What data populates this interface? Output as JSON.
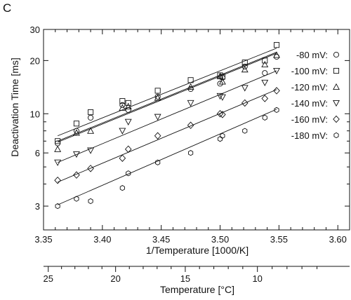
{
  "panel_label": "C",
  "chart_data": {
    "type": "scatter",
    "xlabel": "1/Temperature  [1000/K]",
    "ylabel": "Deactivation Time [ms]",
    "y_scale": "log",
    "xlim": [
      3.35,
      3.61
    ],
    "ylim": [
      2.2,
      30
    ],
    "x_ticks": [
      "3.35",
      "3.40",
      "3.45",
      "3.50",
      "3.55",
      "3.60"
    ],
    "y_ticks": [
      "3",
      "6",
      "10",
      "20",
      "30"
    ],
    "secondary_x_axis": {
      "label": "Temperature [°C]",
      "ticks": [
        "25",
        "20",
        "15",
        "10"
      ]
    },
    "legend_position": "right",
    "series": [
      {
        "name": "-80 mV:",
        "marker": "circle",
        "x": [
          3.362,
          3.378,
          3.39,
          3.417,
          3.422,
          3.447,
          3.475,
          3.5,
          3.502,
          3.521,
          3.538,
          3.548
        ],
        "y": [
          6.8,
          8.0,
          9.5,
          11.2,
          10.5,
          12.5,
          13.8,
          14.8,
          16.0,
          18.5,
          17.0,
          21.0
        ],
        "fit": [
          [
            3.362,
            7.0
          ],
          [
            3.548,
            22.3
          ]
        ]
      },
      {
        "name": "-100 mV:",
        "marker": "square",
        "x": [
          3.362,
          3.378,
          3.39,
          3.417,
          3.422,
          3.447,
          3.475,
          3.5,
          3.502,
          3.521,
          3.538,
          3.548
        ],
        "y": [
          7.0,
          8.8,
          10.2,
          11.8,
          11.5,
          13.5,
          15.5,
          16.5,
          16.2,
          19.5,
          20.0,
          24.5
        ],
        "fit": [
          [
            3.362,
            7.5
          ],
          [
            3.548,
            23.5
          ]
        ]
      },
      {
        "name": "-120 mV:",
        "marker": "triangle-up",
        "x": [
          3.362,
          3.378,
          3.39,
          3.417,
          3.422,
          3.447,
          3.475,
          3.5,
          3.502,
          3.521,
          3.538,
          3.548
        ],
        "y": [
          6.3,
          7.8,
          8.0,
          10.8,
          11.0,
          12.3,
          14.2,
          16.3,
          15.2,
          17.8,
          19.0,
          21.5
        ],
        "fit": [
          [
            3.362,
            6.9
          ],
          [
            3.548,
            22.0
          ]
        ]
      },
      {
        "name": "-140 mV:",
        "marker": "triangle-down",
        "x": [
          3.362,
          3.378,
          3.39,
          3.417,
          3.422,
          3.447,
          3.475,
          3.5,
          3.502,
          3.521,
          3.538,
          3.548
        ],
        "y": [
          5.3,
          5.9,
          6.2,
          8.0,
          9.0,
          9.6,
          11.5,
          12.6,
          12.4,
          14.0,
          15.0,
          17.5
        ],
        "fit": [
          [
            3.362,
            5.3
          ],
          [
            3.548,
            17.5
          ]
        ]
      },
      {
        "name": "-160 mV:",
        "marker": "diamond",
        "x": [
          3.362,
          3.378,
          3.39,
          3.417,
          3.422,
          3.447,
          3.475,
          3.5,
          3.502,
          3.521,
          3.538,
          3.548
        ],
        "y": [
          4.2,
          4.5,
          4.9,
          5.6,
          6.3,
          7.5,
          8.6,
          10.0,
          9.9,
          11.5,
          12.2,
          13.5
        ],
        "fit": [
          [
            3.362,
            4.1
          ],
          [
            3.548,
            13.7
          ]
        ]
      },
      {
        "name": "-180 mV:",
        "marker": "hexagon",
        "x": [
          3.362,
          3.378,
          3.39,
          3.417,
          3.422,
          3.447,
          3.475,
          3.5,
          3.502,
          3.521,
          3.538,
          3.548
        ],
        "y": [
          3.0,
          3.3,
          3.2,
          3.8,
          4.6,
          5.3,
          6.0,
          7.2,
          7.5,
          8.0,
          9.5,
          10.5
        ],
        "fit": [
          [
            3.362,
            3.05
          ],
          [
            3.548,
            10.6
          ]
        ]
      }
    ]
  }
}
